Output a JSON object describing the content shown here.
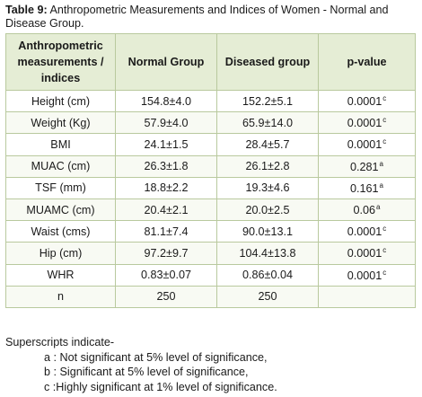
{
  "caption": {
    "label": "Table 9:",
    "text": " Anthropometric Measurements and Indices of Women - Normal and Disease Group."
  },
  "table": {
    "headers": [
      "Anthropometric measurements / indices",
      "Normal Group",
      "Diseased group",
      "p-value"
    ],
    "rows": [
      {
        "measure": "Height (cm)",
        "normal": "154.8±4.0",
        "diseased": "152.2±5.1",
        "p": "0.0001",
        "sup": "c"
      },
      {
        "measure": "Weight (Kg)",
        "normal": "57.9±4.0",
        "diseased": "65.9±14.0",
        "p": "0.0001",
        "sup": "c"
      },
      {
        "measure": "BMI",
        "normal": "24.1±1.5",
        "diseased": "28.4±5.7",
        "p": "0.0001",
        "sup": "c"
      },
      {
        "measure": "MUAC (cm)",
        "normal": "26.3±1.8",
        "diseased": "26.1±2.8",
        "p": "0.281",
        "sup": "a"
      },
      {
        "measure": "TSF (mm)",
        "normal": "18.8±2.2",
        "diseased": "19.3±4.6",
        "p": "0.161",
        "sup": "a"
      },
      {
        "measure": "MUAMC (cm)",
        "normal": "20.4±2.1",
        "diseased": "20.0±2.5",
        "p": "0.06",
        "sup": "a"
      },
      {
        "measure": "Waist (cms)",
        "normal": "81.1±7.4",
        "diseased": "90.0±13.1",
        "p": "0.0001",
        "sup": "c"
      },
      {
        "measure": "Hip (cm)",
        "normal": "97.2±9.7",
        "diseased": "104.4±13.8",
        "p": "0.0001",
        "sup": "c"
      },
      {
        "measure": "WHR",
        "normal": "0.83±0.07",
        "diseased": "0.86±0.04",
        "p": "0.0001",
        "sup": "c"
      },
      {
        "measure": "n",
        "normal": "250",
        "diseased": "250",
        "p": "",
        "sup": ""
      }
    ]
  },
  "notes": {
    "intro": "Superscripts indicate-",
    "items": [
      "a : Not significant at 5% level of significance,",
      "b : Significant at 5% level of significance,",
      "c :Highly significant at 1% level of significance."
    ]
  }
}
